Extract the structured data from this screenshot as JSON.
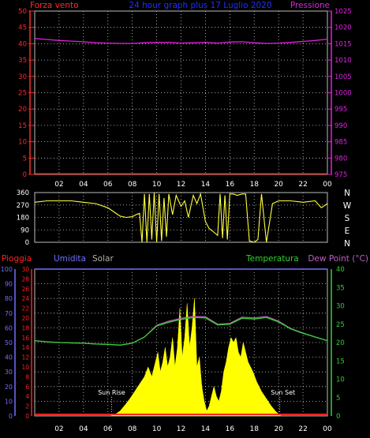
{
  "header": {
    "left_label": "Forza vento",
    "center_label": "24 hour graph plus  17 Luglio 2020",
    "right_label": "Pressione"
  },
  "colors": {
    "bg": "#000000",
    "grid": "#cfcfcf",
    "wind": "#ff2a2a",
    "pressure": "#e020e0",
    "direction": "#ffff40",
    "humidity": "#7070ff",
    "solar": "#ffff00",
    "temperature": "#30d030",
    "dew": "#c060c0",
    "rain": "#ff2020",
    "center_label": "#2030ff",
    "solar_label": "#b0b0a0"
  },
  "chart_data": [
    {
      "type": "line",
      "panel": "wind-pressure",
      "x_ticks": [
        "02",
        "04",
        "06",
        "08",
        "10",
        "12",
        "14",
        "16",
        "18",
        "20",
        "22",
        "00"
      ],
      "left_axis": {
        "label": "Forza vento",
        "ylim": [
          0,
          50
        ],
        "ticks": [
          0,
          5,
          10,
          15,
          20,
          25,
          30,
          35,
          40,
          45,
          50
        ]
      },
      "right_axis": {
        "label": "Pressione",
        "ylim": [
          975,
          1025
        ],
        "ticks": [
          975,
          980,
          985,
          990,
          995,
          1000,
          1005,
          1010,
          1015,
          1020,
          1025
        ]
      },
      "series": [
        {
          "axis": "right",
          "x": [
            0,
            1,
            2,
            3,
            4,
            5,
            6,
            7,
            8,
            9,
            10,
            11,
            12,
            13,
            14,
            15,
            16,
            17,
            18,
            19,
            20,
            21,
            22,
            23,
            24
          ],
          "values": [
            1016.6,
            1016.3,
            1016.0,
            1015.8,
            1015.6,
            1015.3,
            1015.2,
            1015.1,
            1015.1,
            1015.3,
            1015.4,
            1015.4,
            1015.2,
            1015.3,
            1015.4,
            1015.2,
            1015.5,
            1015.6,
            1015.3,
            1015.1,
            1015.2,
            1015.4,
            1015.7,
            1016.0,
            1016.4
          ]
        },
        {
          "axis": "left",
          "x": [
            0,
            24
          ],
          "values": [
            0.2,
            0.2
          ]
        }
      ]
    },
    {
      "type": "line",
      "panel": "wind-direction",
      "x_ticks": [
        "02",
        "04",
        "06",
        "08",
        "10",
        "12",
        "14",
        "16",
        "18",
        "20",
        "22",
        "00"
      ],
      "left_axis": {
        "ylim": [
          0,
          360
        ],
        "ticks": [
          0,
          90,
          180,
          270,
          360
        ]
      },
      "right_axis": {
        "ticks": [
          "N",
          "W",
          "S",
          "E",
          "N"
        ]
      },
      "series": [
        {
          "x": [
            0,
            1,
            2,
            3,
            4,
            5,
            6,
            7,
            7.5,
            8,
            8.3,
            8.6,
            8.8,
            9,
            9.2,
            9.4,
            9.6,
            9.8,
            10,
            10.2,
            10.4,
            10.6,
            10.8,
            11,
            11.3,
            11.6,
            12,
            12.3,
            12.6,
            13,
            13.3,
            13.6,
            14,
            14.3,
            14.6,
            15,
            15.2,
            15.4,
            15.6,
            15.8,
            16,
            16.3,
            16.6,
            17,
            17.3,
            17.6,
            18,
            18.3,
            18.6,
            19,
            19.5,
            20,
            21,
            22,
            23,
            23.5,
            24
          ],
          "values": [
            290,
            300,
            300,
            300,
            290,
            280,
            250,
            190,
            180,
            185,
            200,
            210,
            0,
            350,
            0,
            350,
            20,
            360,
            0,
            350,
            10,
            320,
            40,
            350,
            200,
            340,
            260,
            300,
            180,
            340,
            280,
            350,
            150,
            100,
            80,
            50,
            350,
            30,
            340,
            20,
            350,
            350,
            340,
            350,
            350,
            10,
            0,
            20,
            350,
            0,
            280,
            300,
            300,
            290,
            300,
            250,
            280
          ]
        }
      ]
    },
    {
      "type": "line",
      "panel": "rain-humidity-solar-temperature",
      "x_ticks": [
        "02",
        "04",
        "06",
        "08",
        "10",
        "12",
        "14",
        "16",
        "18",
        "20",
        "22",
        "00"
      ],
      "legend": [
        "Pioggia",
        "Umidita",
        "Solar",
        "Temperatura",
        "Dew Point (°C)"
      ],
      "axes": {
        "humidity": {
          "ylim": [
            0,
            100
          ],
          "ticks": [
            0,
            10,
            20,
            30,
            40,
            50,
            60,
            70,
            80,
            90,
            100
          ]
        },
        "rain": {
          "ylim": [
            0,
            30
          ],
          "ticks": [
            0,
            2,
            4,
            6,
            8,
            10,
            12,
            14,
            16,
            18,
            20,
            22,
            24,
            26,
            28,
            30
          ]
        },
        "temperature": {
          "ylim": [
            0,
            40
          ],
          "ticks": [
            0,
            5,
            10,
            15,
            20,
            25,
            30,
            35,
            40
          ]
        }
      },
      "annotations": [
        "Sun Rise",
        "Sun Set"
      ],
      "series": [
        {
          "name": "Temperatura",
          "axis": "temperature",
          "x": [
            0,
            1,
            2,
            3,
            4,
            5,
            6,
            7,
            8,
            9,
            10,
            11,
            12,
            13,
            14,
            15,
            16,
            17,
            18,
            19,
            20,
            21,
            22,
            23,
            24
          ],
          "values": [
            20.5,
            20.2,
            20.0,
            19.9,
            19.8,
            19.6,
            19.5,
            19.3,
            19.8,
            21.5,
            24.5,
            25.5,
            26.3,
            26.8,
            26.7,
            24.8,
            25.0,
            26.6,
            26.4,
            26.8,
            25.6,
            23.7,
            22.5,
            21.5,
            20.5
          ]
        },
        {
          "name": "Dew Point (°C)",
          "axis": "temperature",
          "x": [
            0,
            1,
            2,
            3,
            4,
            5,
            6,
            7,
            8,
            9,
            10,
            11,
            12,
            13,
            14,
            15,
            16,
            17,
            18,
            19,
            20,
            21,
            22,
            23,
            24
          ],
          "values": [
            20.5,
            20.2,
            20.0,
            19.9,
            19.8,
            19.6,
            19.5,
            19.3,
            19.8,
            21.5,
            24.7,
            25.8,
            26.6,
            27.1,
            27.0,
            25.0,
            25.2,
            26.9,
            26.7,
            27.1,
            25.8,
            23.8,
            22.6,
            21.5,
            20.5
          ]
        },
        {
          "name": "Umidita",
          "axis": "humidity",
          "x": [
            0,
            24
          ],
          "values": [
            100,
            100
          ]
        },
        {
          "name": "Pioggia",
          "axis": "rain",
          "x": [
            0,
            24
          ],
          "values": [
            0.3,
            0.3
          ]
        },
        {
          "name": "Solar",
          "axis": "rain",
          "x": [
            6.2,
            6.6,
            7.0,
            7.4,
            7.8,
            8.2,
            8.6,
            9.0,
            9.3,
            9.6,
            9.9,
            10.1,
            10.3,
            10.5,
            10.7,
            10.9,
            11.1,
            11.3,
            11.5,
            11.7,
            11.9,
            12.1,
            12.3,
            12.5,
            12.7,
            12.9,
            13.1,
            13.3,
            13.5,
            13.7,
            13.9,
            14.1,
            14.3,
            14.5,
            14.7,
            14.9,
            15.1,
            15.3,
            15.5,
            15.7,
            15.9,
            16.1,
            16.3,
            16.5,
            16.7,
            16.9,
            17.1,
            17.3,
            17.5,
            17.7,
            17.9,
            18.2,
            18.6,
            19.0,
            19.4,
            19.8,
            20.2
          ],
          "values": [
            0,
            0.3,
            1,
            2.2,
            3.5,
            5,
            6.5,
            8,
            10,
            8,
            11,
            13,
            9,
            11,
            14,
            10,
            12,
            16,
            10,
            14,
            22,
            12,
            16,
            23,
            14,
            18,
            24,
            10,
            12,
            6,
            3,
            1,
            2,
            4,
            6,
            4,
            3,
            5,
            9,
            11,
            14,
            16,
            15,
            16,
            13,
            12,
            15,
            13,
            11,
            10,
            9,
            7,
            5,
            3.5,
            2,
            0.8,
            0
          ]
        }
      ]
    }
  ]
}
